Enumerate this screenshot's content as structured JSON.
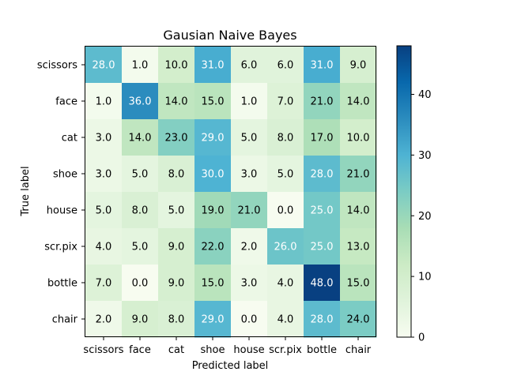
{
  "chart_data": {
    "type": "heatmap",
    "title": "Gausian Naive Bayes",
    "xlabel": "Predicted label",
    "ylabel": "True label",
    "x_categories": [
      "scissors",
      "face",
      "cat",
      "shoe",
      "house",
      "scr.pix",
      "bottle",
      "chair"
    ],
    "y_categories": [
      "scissors",
      "face",
      "cat",
      "shoe",
      "house",
      "scr.pix",
      "bottle",
      "chair"
    ],
    "values": [
      [
        28,
        1,
        10,
        31,
        6,
        6,
        31,
        9
      ],
      [
        1,
        36,
        14,
        15,
        1,
        7,
        21,
        14
      ],
      [
        3,
        14,
        23,
        29,
        5,
        8,
        17,
        10
      ],
      [
        3,
        5,
        8,
        30,
        3,
        5,
        28,
        21
      ],
      [
        5,
        8,
        5,
        19,
        21,
        0,
        25,
        14
      ],
      [
        4,
        5,
        9,
        22,
        2,
        26,
        25,
        13
      ],
      [
        7,
        0,
        9,
        15,
        3,
        4,
        48,
        15
      ],
      [
        2,
        9,
        8,
        29,
        0,
        4,
        28,
        24
      ]
    ],
    "value_labels": [
      [
        "28.0",
        "1.0",
        "10.0",
        "31.0",
        "6.0",
        "6.0",
        "31.0",
        "9.0"
      ],
      [
        "1.0",
        "36.0",
        "14.0",
        "15.0",
        "1.0",
        "7.0",
        "21.0",
        "14.0"
      ],
      [
        "3.0",
        "14.0",
        "23.0",
        "29.0",
        "5.0",
        "8.0",
        "17.0",
        "10.0"
      ],
      [
        "3.0",
        "5.0",
        "8.0",
        "30.0",
        "3.0",
        "5.0",
        "28.0",
        "21.0"
      ],
      [
        "5.0",
        "8.0",
        "5.0",
        "19.0",
        "21.0",
        "0.0",
        "25.0",
        "14.0"
      ],
      [
        "4.0",
        "5.0",
        "9.0",
        "22.0",
        "2.0",
        "26.0",
        "25.0",
        "13.0"
      ],
      [
        "7.0",
        "0.0",
        "9.0",
        "15.0",
        "3.0",
        "4.0",
        "48.0",
        "15.0"
      ],
      [
        "2.0",
        "9.0",
        "8.0",
        "29.0",
        "0.0",
        "4.0",
        "28.0",
        "24.0"
      ]
    ],
    "colorbar": {
      "range": [
        0,
        48
      ],
      "ticks": [
        0,
        10,
        20,
        30,
        40
      ],
      "colormap": "GnBu"
    },
    "text_colors": {
      "dark": "#000000",
      "light": "#ffffff"
    },
    "grid": false
  }
}
